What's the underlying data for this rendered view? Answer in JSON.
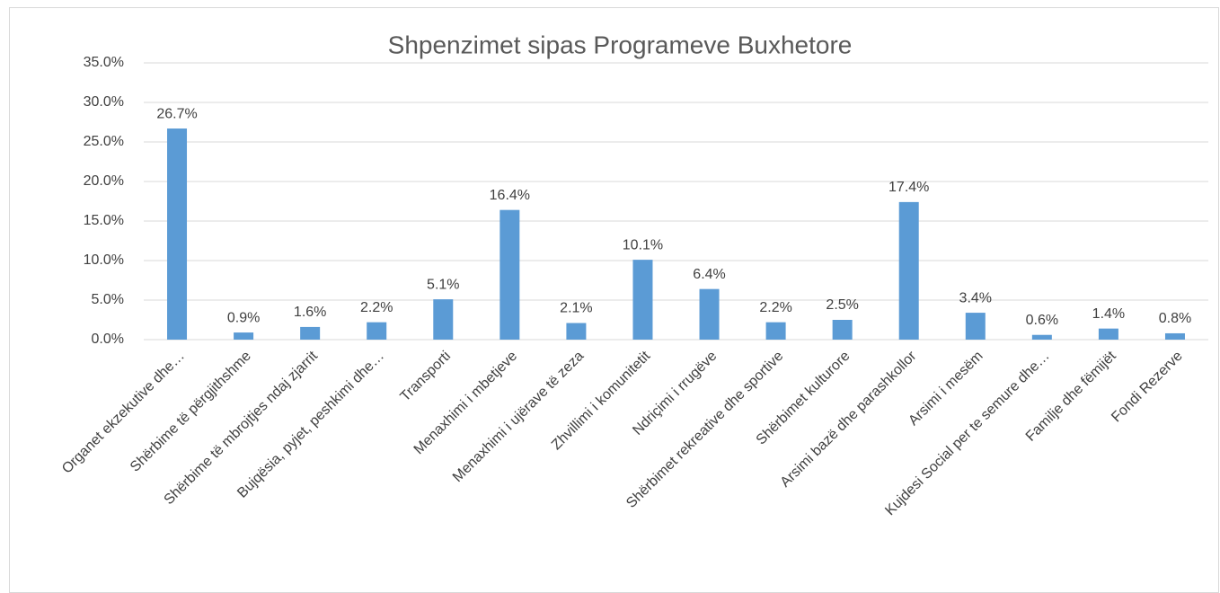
{
  "chart_data": {
    "type": "bar",
    "title": "Shpenzimet sipas Programeve Buxhetore",
    "categories": [
      "Organet ekzekutive dhe…",
      "Shërbime të përgjithshme",
      "Shërbime të mbrojtjes ndaj zjarrit",
      "Bujqësia, pyjet, peshkimi dhe…",
      "Transporti",
      "Menaxhimi i mbetjeve",
      "Menaxhimi i ujërave të zeza",
      "Zhvillimi i komunitetit",
      "Ndriçimi i rrugëve",
      "Shërbimet rekreative dhe sportive",
      "Shërbimet kulturore",
      "Arsimi bazë dhe parashkollor",
      "Arsimi i mesëm",
      "Kujdesi Social per te semure dhe…",
      "Familje dhe fëmijët",
      "Fondi Rezerve"
    ],
    "values": [
      26.7,
      0.9,
      1.6,
      2.2,
      5.1,
      16.4,
      2.1,
      10.1,
      6.4,
      2.2,
      2.5,
      17.4,
      3.4,
      0.6,
      1.4,
      0.8
    ],
    "value_labels": [
      "26.7%",
      "0.9%",
      "1.6%",
      "2.2%",
      "5.1%",
      "16.4%",
      "2.1%",
      "10.1%",
      "6.4%",
      "2.2%",
      "2.5%",
      "17.4%",
      "3.4%",
      "0.6%",
      "1.4%",
      "0.8%"
    ],
    "color": "#5b9bd5",
    "ylim": [
      0,
      35
    ],
    "yticks": [
      {
        "value": 0,
        "label": "0.0%"
      },
      {
        "value": 5,
        "label": "5.0%"
      },
      {
        "value": 10,
        "label": "10.0%"
      },
      {
        "value": 15,
        "label": "15.0%"
      },
      {
        "value": 20,
        "label": "20.0%"
      },
      {
        "value": 25,
        "label": "25.0%"
      },
      {
        "value": 30,
        "label": "30.0%"
      },
      {
        "value": 35,
        "label": "35.0%"
      }
    ],
    "grid": true
  }
}
